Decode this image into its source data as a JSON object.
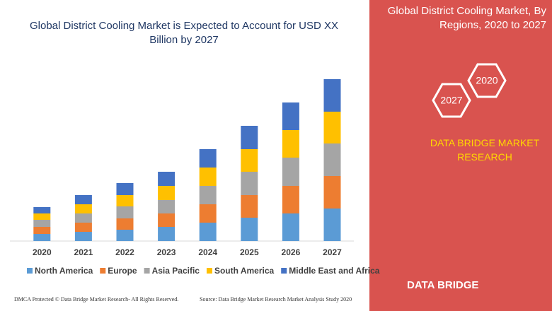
{
  "chart_data": {
    "type": "bar",
    "stacked": true,
    "title": "Global District Cooling Market is Expected to Account for USD XX Billion by 2027",
    "categories": [
      "2020",
      "2021",
      "2022",
      "2023",
      "2024",
      "2025",
      "2026",
      "2027"
    ],
    "series": [
      {
        "name": "North America",
        "color": "#5b9bd5",
        "values": [
          10,
          13,
          16,
          20,
          26,
          33,
          39,
          46
        ]
      },
      {
        "name": "Europe",
        "color": "#ed7d31",
        "values": [
          10,
          13,
          16,
          19,
          26,
          32,
          39,
          46
        ]
      },
      {
        "name": "Asia Pacific",
        "color": "#a5a5a5",
        "values": [
          10,
          13,
          17,
          19,
          26,
          33,
          40,
          46
        ]
      },
      {
        "name": "South America",
        "color": "#ffc000",
        "values": [
          9,
          13,
          16,
          20,
          26,
          32,
          39,
          45
        ]
      },
      {
        "name": "Middle East and Africa",
        "color": "#4472c4",
        "values": [
          9,
          13,
          17,
          20,
          26,
          33,
          39,
          46
        ]
      }
    ]
  },
  "side_panel": {
    "title": "Global District Cooling Market, By Regions, 2020 to 2027",
    "hexagons": [
      "2020",
      "2027"
    ],
    "brand": "DATA BRIDGE MARKET RESEARCH"
  },
  "footer": {
    "copyright": "DMCA Protected © Data Bridge Market Research- All Rights Reserved.",
    "source": "Source: Data Bridge Market Research Market Analysis Study 2020",
    "logo": "DATA BRIDGE"
  }
}
